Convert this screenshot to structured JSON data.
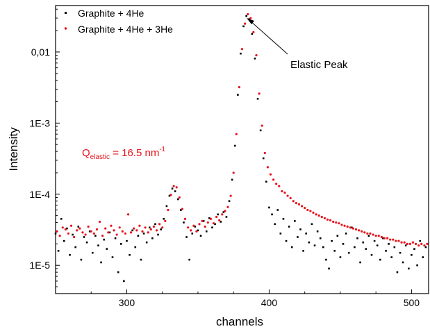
{
  "chart_data": {
    "type": "scatter",
    "xlabel": "channels",
    "ylabel": "Intensity",
    "xlim": [
      250,
      512
    ],
    "ylim": [
      4e-06,
      0.045
    ],
    "yscale": "log",
    "x_ticks": [
      300,
      400,
      500
    ],
    "y_ticks": [
      {
        "value": 1e-05,
        "label": "1E-5"
      },
      {
        "value": 0.0001,
        "label": "1E-4"
      },
      {
        "value": 0.001,
        "label": "1E-3"
      },
      {
        "value": 0.01,
        "label": "0,01"
      }
    ],
    "grid": false,
    "legend_position": "top-left",
    "colors": {
      "graphite_4he": "#000000",
      "graphite_4he_3he": "#e8131b",
      "annotation": "#e8131b"
    },
    "annotations": {
      "elastic_peak": "Elastic Peak",
      "q_base": "Q",
      "q_sub": "elastic",
      "q_text": " = 16.5 nm",
      "q_sup": "-1"
    },
    "series": [
      {
        "name": "Graphite + 4He",
        "color": "#000000",
        "x": [
          250,
          252,
          254,
          256,
          258,
          260,
          262,
          264,
          266,
          268,
          270,
          272,
          274,
          276,
          278,
          280,
          282,
          284,
          286,
          288,
          290,
          292,
          294,
          296,
          298,
          300,
          302,
          304,
          306,
          308,
          310,
          312,
          314,
          316,
          318,
          320,
          322,
          324,
          326,
          328,
          330,
          332,
          334,
          336,
          338,
          340,
          342,
          344,
          346,
          348,
          350,
          352,
          354,
          356,
          358,
          360,
          362,
          364,
          366,
          368,
          370,
          372,
          374,
          376,
          378,
          380,
          382,
          384,
          386,
          388,
          390,
          392,
          394,
          396,
          398,
          400,
          402,
          404,
          406,
          408,
          410,
          412,
          414,
          416,
          418,
          420,
          422,
          424,
          426,
          428,
          430,
          432,
          434,
          436,
          438,
          440,
          442,
          444,
          446,
          448,
          450,
          452,
          454,
          456,
          458,
          460,
          462,
          464,
          466,
          468,
          470,
          472,
          474,
          476,
          478,
          480,
          482,
          484,
          486,
          488,
          490,
          492,
          494,
          496,
          498,
          500,
          502,
          504,
          506,
          508,
          510
        ],
        "y": [
          2.8e-05,
          1.6e-05,
          4.5e-05,
          2.2e-05,
          3.3e-05,
          1.4e-05,
          2.7e-05,
          1.8e-05,
          3.5e-05,
          1.2e-05,
          2.5e-05,
          2.1e-05,
          3e-05,
          1.5e-05,
          2.6e-05,
          1.9e-05,
          1.1e-05,
          2.3e-05,
          1.7e-05,
          2.9e-05,
          1.3e-05,
          2.4e-05,
          8e-06,
          2e-05,
          6e-06,
          2.2e-05,
          1.4e-05,
          3.1e-05,
          1.8e-05,
          2.6e-05,
          1.2e-05,
          2.8e-05,
          2.1e-05,
          3.4e-05,
          2.4e-05,
          3.8e-05,
          2.7e-05,
          3.2e-05,
          4.5e-05,
          6.8e-05,
          9.5e-05,
          0.00012,
          0.00011,
          8.5e-05,
          6e-05,
          4e-05,
          2.5e-05,
          1.2e-05,
          2.8e-05,
          3.5e-05,
          3.1e-05,
          2.6e-05,
          4.2e-05,
          3e-05,
          4.6e-05,
          3.4e-05,
          3.8e-05,
          5.2e-05,
          4.1e-05,
          5.6e-05,
          4.8e-05,
          8e-05,
          0.00016,
          0.00048,
          0.0025,
          0.0095,
          0.023,
          0.032,
          0.029,
          0.018,
          0.0081,
          0.0022,
          0.00079,
          0.00032,
          0.00015,
          6.5e-05,
          5.2e-05,
          3.8e-05,
          6e-05,
          2.8e-05,
          4.5e-05,
          2.2e-05,
          3.5e-05,
          1.8e-05,
          4.2e-05,
          2.5e-05,
          3.2e-05,
          1.6e-05,
          2.8e-05,
          2.1e-05,
          3.8e-05,
          1.9e-05,
          3e-05,
          2.4e-05,
          1.8e-05,
          1.2e-05,
          9e-06,
          2.2e-05,
          1.6e-05,
          2.6e-05,
          1.3e-05,
          2e-05,
          2.8e-05,
          1.5e-05,
          3.4e-05,
          1.8e-05,
          2.4e-05,
          1.1e-05,
          2.1e-05,
          1.7e-05,
          2.6e-05,
          1.4e-05,
          2.2e-05,
          1.9e-05,
          1.2e-05,
          2.4e-05,
          1.6e-05,
          2e-05,
          1.3e-05,
          1.8e-05,
          8e-06,
          1.5e-05,
          1.1e-05,
          1.9e-05,
          9e-06,
          1.4e-05,
          1.7e-05,
          1e-05,
          2.2e-05,
          1.3e-05,
          1.8e-05
        ]
      },
      {
        "name": "Graphite + 4He + 3He",
        "color": "#e8131b",
        "x": [
          251,
          253,
          255,
          257,
          259,
          261,
          263,
          265,
          267,
          269,
          271,
          273,
          275,
          277,
          279,
          281,
          283,
          285,
          287,
          289,
          291,
          293,
          295,
          297,
          299,
          301,
          303,
          305,
          307,
          309,
          311,
          313,
          315,
          317,
          319,
          321,
          323,
          325,
          327,
          329,
          331,
          333,
          335,
          337,
          339,
          341,
          343,
          345,
          347,
          349,
          351,
          353,
          355,
          357,
          359,
          361,
          363,
          365,
          367,
          369,
          371,
          373,
          375,
          377,
          379,
          381,
          383,
          385,
          387,
          389,
          391,
          393,
          395,
          397,
          399,
          401,
          403,
          405,
          407,
          409,
          411,
          413,
          415,
          417,
          419,
          421,
          423,
          425,
          427,
          429,
          431,
          433,
          435,
          437,
          439,
          441,
          443,
          445,
          447,
          449,
          451,
          453,
          455,
          457,
          459,
          461,
          463,
          465,
          467,
          469,
          471,
          473,
          475,
          477,
          479,
          481,
          483,
          485,
          487,
          489,
          491,
          493,
          495,
          497,
          499,
          501,
          503,
          505,
          507,
          509,
          511
        ],
        "y": [
          3e-05,
          2.6e-05,
          3.4e-05,
          3.2e-05,
          2.8e-05,
          3.6e-05,
          2.5e-05,
          3.1e-05,
          3.3e-05,
          2.9e-05,
          2.7e-05,
          3.5e-05,
          3e-05,
          2.8e-05,
          3.2e-05,
          4.1e-05,
          2.6e-05,
          3.3e-05,
          2.9e-05,
          3.6e-05,
          3.1e-05,
          2.7e-05,
          3.4e-05,
          3e-05,
          2.8e-05,
          5.2e-05,
          2.9e-05,
          3.3e-05,
          3.1e-05,
          3.6e-05,
          3e-05,
          3.4e-05,
          2.9e-05,
          3.2e-05,
          3.5e-05,
          3.1e-05,
          3.8e-05,
          3.4e-05,
          4.2e-05,
          6e-05,
          9.8e-05,
          0.00013,
          0.000125,
          9e-05,
          6.2e-05,
          4.5e-05,
          3.4e-05,
          3.1e-05,
          3.6e-05,
          3e-05,
          3.8e-05,
          4.2e-05,
          3.5e-05,
          4e-05,
          4.5e-05,
          3.9e-05,
          4.8e-05,
          4.3e-05,
          5.2e-05,
          5.8e-05,
          6.6e-05,
          9.5e-05,
          0.0002,
          0.0007,
          0.0032,
          0.011,
          0.025,
          0.034,
          0.03,
          0.019,
          0.009,
          0.0026,
          0.00092,
          0.00038,
          0.00024,
          0.00019,
          0.00016,
          0.00014,
          0.00013,
          0.00011,
          0.000105,
          9.5e-05,
          8.8e-05,
          8e-05,
          7.5e-05,
          7.2e-05,
          6.8e-05,
          6.4e-05,
          6e-05,
          5.8e-05,
          5.5e-05,
          5.2e-05,
          5e-05,
          4.8e-05,
          4.6e-05,
          4.4e-05,
          4.3e-05,
          4.1e-05,
          4e-05,
          3.9e-05,
          3.7e-05,
          3.6e-05,
          3.5e-05,
          3.4e-05,
          3.3e-05,
          3.2e-05,
          3.1e-05,
          3e-05,
          2.9e-05,
          2.8e-05,
          2.8e-05,
          2.7e-05,
          2.6e-05,
          2.6e-05,
          2.5e-05,
          2.4e-05,
          2.4e-05,
          2.3e-05,
          2.3e-05,
          2.2e-05,
          2.2e-05,
          2.1e-05,
          2.1e-05,
          2e-05,
          2e-05,
          2.1e-05,
          2e-05,
          1.9e-05,
          2e-05,
          1.9e-05,
          2e-05
        ]
      }
    ]
  }
}
